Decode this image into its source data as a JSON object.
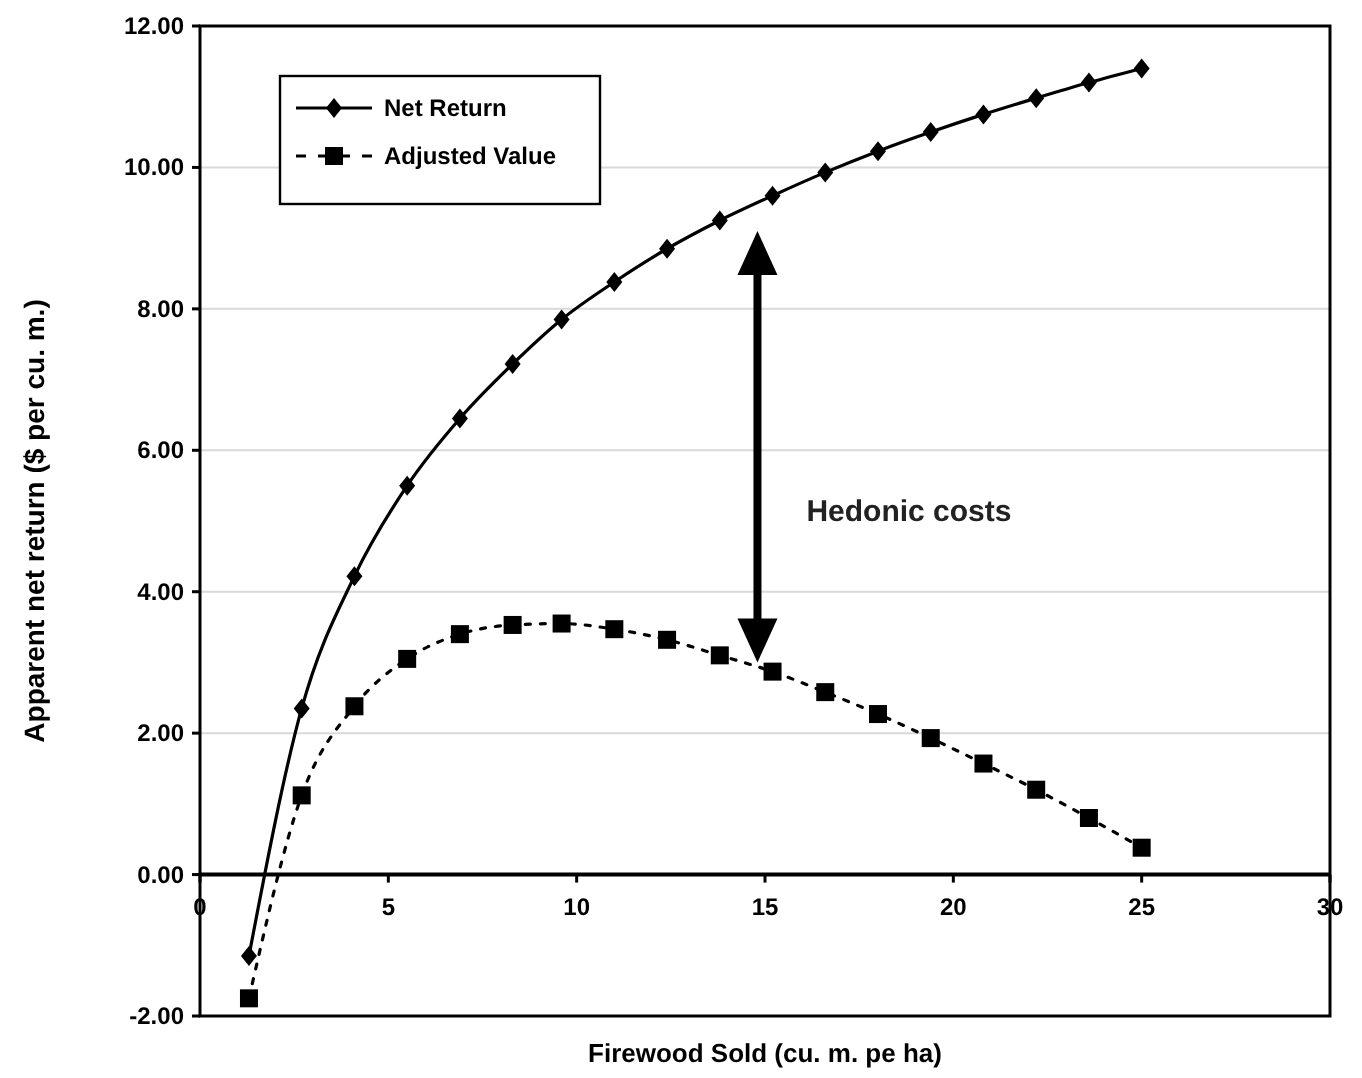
{
  "chart_data": {
    "type": "line",
    "xlabel": "Firewood Sold (cu. m. pe ha)",
    "ylabel": "Apparent net return ($ per cu. m.)",
    "x": [
      1.3,
      2.7,
      4.1,
      5.5,
      6.9,
      8.3,
      9.6,
      11.0,
      12.4,
      13.8,
      15.2,
      16.6,
      18.0,
      19.4,
      20.8,
      22.2,
      23.6,
      25.0
    ],
    "series": [
      {
        "name": "Net Return",
        "color": "#000000",
        "marker": "diamond",
        "line_style": "solid",
        "values": [
          -1.15,
          2.35,
          4.22,
          5.5,
          6.45,
          7.22,
          7.85,
          8.38,
          8.85,
          9.25,
          9.6,
          9.93,
          10.23,
          10.5,
          10.75,
          10.98,
          11.2,
          11.4
        ]
      },
      {
        "name": "Adjusted Value",
        "color": "#000000",
        "marker": "square",
        "line_style": "dotted",
        "values": [
          -1.75,
          1.12,
          2.38,
          3.05,
          3.4,
          3.53,
          3.55,
          3.47,
          3.32,
          3.1,
          2.87,
          2.58,
          2.27,
          1.93,
          1.57,
          1.2,
          0.8,
          0.38
        ]
      }
    ],
    "xlim": [
      0,
      30
    ],
    "xticks": [
      0,
      5,
      10,
      15,
      20,
      25,
      30
    ],
    "ylim": [
      -2,
      12
    ],
    "yticks": [
      {
        "value": -2,
        "label": "-2.00"
      },
      {
        "value": 0,
        "label": "0.00"
      },
      {
        "value": 2,
        "label": "2.00"
      },
      {
        "value": 4,
        "label": "4.00"
      },
      {
        "value": 6,
        "label": "6.00"
      },
      {
        "value": 8,
        "label": "8.00"
      },
      {
        "value": 10,
        "label": "10.00"
      },
      {
        "value": 12,
        "label": "12.00"
      }
    ],
    "grid": "y",
    "legend": "top left",
    "annotations": [
      "Hedonic costs"
    ]
  }
}
